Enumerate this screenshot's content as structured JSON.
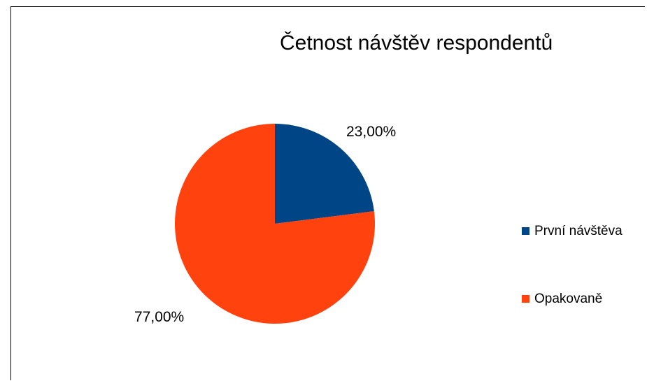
{
  "chart_data": {
    "type": "pie",
    "title": "Četnost návštěv respondentů",
    "categories": [
      "První návštěva",
      "Opakovaně"
    ],
    "values": [
      23,
      77
    ],
    "data_labels": [
      "23,00%",
      "77,00%"
    ],
    "colors": [
      "#004586",
      "#ff420e"
    ],
    "legend_position": "right"
  }
}
